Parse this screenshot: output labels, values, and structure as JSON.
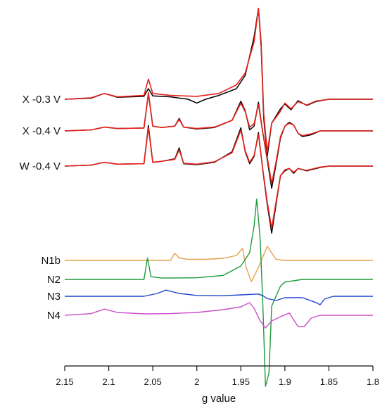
{
  "chart_data": {
    "type": "line",
    "xlabel": "g value",
    "x_reversed": true,
    "xlim": [
      2.15,
      1.8
    ],
    "x_ticks": [
      "2.15",
      "2.1",
      "2.05",
      "2",
      "1.95",
      "1.9",
      "1.85",
      "1.8"
    ],
    "x_tick_values": [
      2.15,
      2.1,
      2.05,
      2.0,
      1.95,
      1.9,
      1.85,
      1.8
    ],
    "colors": {
      "experimental": "#000000",
      "simulation": "#e8201a",
      "N1b": "#e6a14b",
      "N2": "#1f9a3a",
      "N3": "#1f47c8",
      "N4": "#cc4fc9"
    },
    "series": [
      {
        "name": "X -0.3 V",
        "baseline": 2.2,
        "experimental": [
          [
            2.15,
            0.0
          ],
          [
            2.12,
            0.02
          ],
          [
            2.105,
            0.12
          ],
          [
            2.09,
            0.04
          ],
          [
            2.06,
            0.06
          ],
          [
            2.055,
            0.22
          ],
          [
            2.05,
            0.07
          ],
          [
            2.03,
            0.05
          ],
          [
            2.01,
            0.0
          ],
          [
            2.0,
            -0.08
          ],
          [
            1.99,
            0.0
          ],
          [
            1.975,
            0.08
          ],
          [
            1.955,
            0.22
          ],
          [
            1.945,
            0.5
          ],
          [
            1.935,
            1.3
          ],
          [
            1.93,
            1.9
          ],
          [
            1.927,
            1.1
          ],
          [
            1.924,
            -0.4
          ],
          [
            1.92,
            -1.2
          ],
          [
            1.915,
            -0.5
          ],
          [
            1.905,
            -0.2
          ],
          [
            1.9,
            -0.1
          ],
          [
            1.893,
            -0.22
          ],
          [
            1.885,
            -0.03
          ],
          [
            1.875,
            -0.13
          ],
          [
            1.865,
            -0.05
          ],
          [
            1.85,
            0.0
          ],
          [
            1.8,
            0.0
          ]
        ],
        "simulation": [
          [
            2.15,
            0.0
          ],
          [
            2.12,
            0.03
          ],
          [
            2.105,
            0.12
          ],
          [
            2.09,
            0.05
          ],
          [
            2.06,
            0.08
          ],
          [
            2.055,
            0.42
          ],
          [
            2.05,
            0.12
          ],
          [
            2.03,
            0.08
          ],
          [
            2.0,
            0.06
          ],
          [
            1.975,
            0.12
          ],
          [
            1.955,
            0.3
          ],
          [
            1.945,
            0.55
          ],
          [
            1.935,
            1.2
          ],
          [
            1.93,
            1.9
          ],
          [
            1.927,
            1.2
          ],
          [
            1.924,
            -0.3
          ],
          [
            1.92,
            -1.1
          ],
          [
            1.915,
            -0.5
          ],
          [
            1.905,
            -0.25
          ],
          [
            1.9,
            -0.08
          ],
          [
            1.893,
            -0.2
          ],
          [
            1.885,
            -0.05
          ],
          [
            1.875,
            -0.12
          ],
          [
            1.865,
            -0.04
          ],
          [
            1.85,
            0.0
          ],
          [
            1.8,
            0.0
          ]
        ]
      },
      {
        "name": "X -0.4 V",
        "baseline": 1.2,
        "experimental": [
          [
            2.15,
            0.0
          ],
          [
            2.12,
            0.02
          ],
          [
            2.105,
            0.08
          ],
          [
            2.09,
            0.05
          ],
          [
            2.06,
            0.06
          ],
          [
            2.055,
            0.78
          ],
          [
            2.05,
            0.1
          ],
          [
            2.04,
            0.07
          ],
          [
            2.025,
            0.1
          ],
          [
            2.02,
            0.26
          ],
          [
            2.015,
            0.08
          ],
          [
            2.0,
            0.04
          ],
          [
            1.98,
            0.07
          ],
          [
            1.96,
            0.22
          ],
          [
            1.95,
            0.62
          ],
          [
            1.945,
            0.42
          ],
          [
            1.94,
            0.02
          ],
          [
            1.935,
            0.1
          ],
          [
            1.93,
            0.6
          ],
          [
            1.925,
            -0.05
          ],
          [
            1.92,
            -0.6
          ],
          [
            1.915,
            -1.2
          ],
          [
            1.91,
            -0.7
          ],
          [
            1.905,
            -0.15
          ],
          [
            1.9,
            0.1
          ],
          [
            1.895,
            0.18
          ],
          [
            1.89,
            0.12
          ],
          [
            1.885,
            -0.05
          ],
          [
            1.88,
            -0.12
          ],
          [
            1.87,
            -0.08
          ],
          [
            1.86,
            0.0
          ],
          [
            1.8,
            0.0
          ]
        ],
        "simulation": [
          [
            2.15,
            0.0
          ],
          [
            2.12,
            0.02
          ],
          [
            2.105,
            0.08
          ],
          [
            2.09,
            0.05
          ],
          [
            2.06,
            0.06
          ],
          [
            2.055,
            0.8
          ],
          [
            2.05,
            0.1
          ],
          [
            2.04,
            0.07
          ],
          [
            2.025,
            0.1
          ],
          [
            2.02,
            0.24
          ],
          [
            2.015,
            0.08
          ],
          [
            2.0,
            0.05
          ],
          [
            1.98,
            0.08
          ],
          [
            1.96,
            0.22
          ],
          [
            1.95,
            0.58
          ],
          [
            1.945,
            0.4
          ],
          [
            1.94,
            0.08
          ],
          [
            1.935,
            0.15
          ],
          [
            1.93,
            0.55
          ],
          [
            1.925,
            -0.05
          ],
          [
            1.92,
            -0.55
          ],
          [
            1.915,
            -1.1
          ],
          [
            1.91,
            -0.65
          ],
          [
            1.905,
            -0.12
          ],
          [
            1.9,
            0.1
          ],
          [
            1.895,
            0.16
          ],
          [
            1.89,
            0.12
          ],
          [
            1.885,
            -0.05
          ],
          [
            1.88,
            -0.1
          ],
          [
            1.87,
            -0.06
          ],
          [
            1.86,
            0.0
          ],
          [
            1.8,
            0.0
          ]
        ]
      },
      {
        "name": "W -0.4 V",
        "baseline": 0.0,
        "experimental": [
          [
            2.15,
            0.0
          ],
          [
            2.12,
            0.02
          ],
          [
            2.105,
            0.08
          ],
          [
            2.09,
            0.04
          ],
          [
            2.06,
            0.05
          ],
          [
            2.055,
            0.85
          ],
          [
            2.05,
            0.08
          ],
          [
            2.04,
            0.1
          ],
          [
            2.025,
            0.15
          ],
          [
            2.02,
            0.38
          ],
          [
            2.015,
            0.05
          ],
          [
            2.0,
            0.03
          ],
          [
            1.98,
            0.08
          ],
          [
            1.96,
            0.3
          ],
          [
            1.95,
            0.8
          ],
          [
            1.945,
            0.3
          ],
          [
            1.94,
            0.05
          ],
          [
            1.935,
            0.2
          ],
          [
            1.93,
            0.7
          ],
          [
            1.925,
            -0.1
          ],
          [
            1.92,
            -0.8
          ],
          [
            1.915,
            -1.4
          ],
          [
            1.91,
            -0.8
          ],
          [
            1.905,
            -0.2
          ],
          [
            1.9,
            -0.1
          ],
          [
            1.895,
            -0.05
          ],
          [
            1.89,
            -0.15
          ],
          [
            1.885,
            -0.05
          ],
          [
            1.875,
            -0.1
          ],
          [
            1.86,
            -0.03
          ],
          [
            1.85,
            0.0
          ],
          [
            1.8,
            0.0
          ]
        ],
        "simulation": [
          [
            2.15,
            0.0
          ],
          [
            2.12,
            0.02
          ],
          [
            2.105,
            0.08
          ],
          [
            2.09,
            0.04
          ],
          [
            2.06,
            0.05
          ],
          [
            2.055,
            0.8
          ],
          [
            2.05,
            0.08
          ],
          [
            2.04,
            0.1
          ],
          [
            2.025,
            0.14
          ],
          [
            2.02,
            0.34
          ],
          [
            2.015,
            0.06
          ],
          [
            2.0,
            0.04
          ],
          [
            1.98,
            0.09
          ],
          [
            1.96,
            0.28
          ],
          [
            1.95,
            0.75
          ],
          [
            1.945,
            0.32
          ],
          [
            1.94,
            0.08
          ],
          [
            1.935,
            0.22
          ],
          [
            1.93,
            0.66
          ],
          [
            1.925,
            -0.08
          ],
          [
            1.92,
            -0.75
          ],
          [
            1.915,
            -1.3
          ],
          [
            1.91,
            -0.75
          ],
          [
            1.905,
            -0.2
          ],
          [
            1.9,
            -0.08
          ],
          [
            1.895,
            -0.05
          ],
          [
            1.89,
            -0.13
          ],
          [
            1.885,
            -0.05
          ],
          [
            1.875,
            -0.09
          ],
          [
            1.86,
            -0.02
          ],
          [
            1.85,
            0.0
          ],
          [
            1.8,
            0.0
          ]
        ]
      }
    ],
    "components": [
      {
        "name": "N1b",
        "baseline": 0.0,
        "values": [
          [
            2.15,
            0.0
          ],
          [
            2.06,
            0.0
          ],
          [
            2.03,
            0.0
          ],
          [
            2.025,
            0.2
          ],
          [
            2.02,
            0.07
          ],
          [
            2.01,
            0.03
          ],
          [
            1.99,
            0.03
          ],
          [
            1.97,
            0.06
          ],
          [
            1.955,
            0.14
          ],
          [
            1.948,
            0.34
          ],
          [
            1.944,
            -0.2
          ],
          [
            1.938,
            -0.6
          ],
          [
            1.93,
            -0.2
          ],
          [
            1.92,
            0.4
          ],
          [
            1.91,
            0.03
          ],
          [
            1.9,
            0.0
          ],
          [
            1.8,
            0.0
          ]
        ]
      },
      {
        "name": "N2",
        "baseline": 0.0,
        "values": [
          [
            2.15,
            0.0
          ],
          [
            2.06,
            0.0
          ],
          [
            2.056,
            0.8
          ],
          [
            2.052,
            0.1
          ],
          [
            2.04,
            0.05
          ],
          [
            2.0,
            0.06
          ],
          [
            1.97,
            0.15
          ],
          [
            1.95,
            0.5
          ],
          [
            1.94,
            1.0
          ],
          [
            1.935,
            2.0
          ],
          [
            1.932,
            3.0
          ],
          [
            1.928,
            1.5
          ],
          [
            1.925,
            -1.0
          ],
          [
            1.922,
            -4.0
          ],
          [
            1.918,
            -3.5
          ],
          [
            1.915,
            -1.0
          ],
          [
            1.905,
            -0.25
          ],
          [
            1.9,
            -0.1
          ],
          [
            1.88,
            0.0
          ],
          [
            1.8,
            0.0
          ]
        ]
      },
      {
        "name": "N3",
        "baseline": 0.0,
        "values": [
          [
            2.15,
            0.0
          ],
          [
            2.06,
            0.0
          ],
          [
            2.045,
            0.1
          ],
          [
            2.035,
            0.22
          ],
          [
            2.02,
            0.1
          ],
          [
            2.0,
            0.03
          ],
          [
            1.97,
            0.02
          ],
          [
            1.95,
            0.05
          ],
          [
            1.93,
            0.08
          ],
          [
            1.925,
            0.02
          ],
          [
            1.92,
            -0.08
          ],
          [
            1.91,
            -0.15
          ],
          [
            1.9,
            -0.05
          ],
          [
            1.88,
            -0.05
          ],
          [
            1.865,
            -0.22
          ],
          [
            1.86,
            -0.3
          ],
          [
            1.855,
            -0.1
          ],
          [
            1.845,
            0.0
          ],
          [
            1.8,
            0.0
          ]
        ]
      },
      {
        "name": "N4",
        "baseline": 0.0,
        "values": [
          [
            2.15,
            0.0
          ],
          [
            2.12,
            0.06
          ],
          [
            2.105,
            0.22
          ],
          [
            2.09,
            0.1
          ],
          [
            2.06,
            0.05
          ],
          [
            2.03,
            0.06
          ],
          [
            2.0,
            0.1
          ],
          [
            1.97,
            0.2
          ],
          [
            1.95,
            0.3
          ],
          [
            1.94,
            0.45
          ],
          [
            1.935,
            0.25
          ],
          [
            1.928,
            -0.2
          ],
          [
            1.922,
            -0.45
          ],
          [
            1.915,
            -0.2
          ],
          [
            1.905,
            -0.05
          ],
          [
            1.895,
            0.08
          ],
          [
            1.885,
            -0.4
          ],
          [
            1.878,
            -0.4
          ],
          [
            1.87,
            -0.1
          ],
          [
            1.86,
            0.0
          ],
          [
            1.8,
            0.0
          ]
        ]
      }
    ]
  }
}
